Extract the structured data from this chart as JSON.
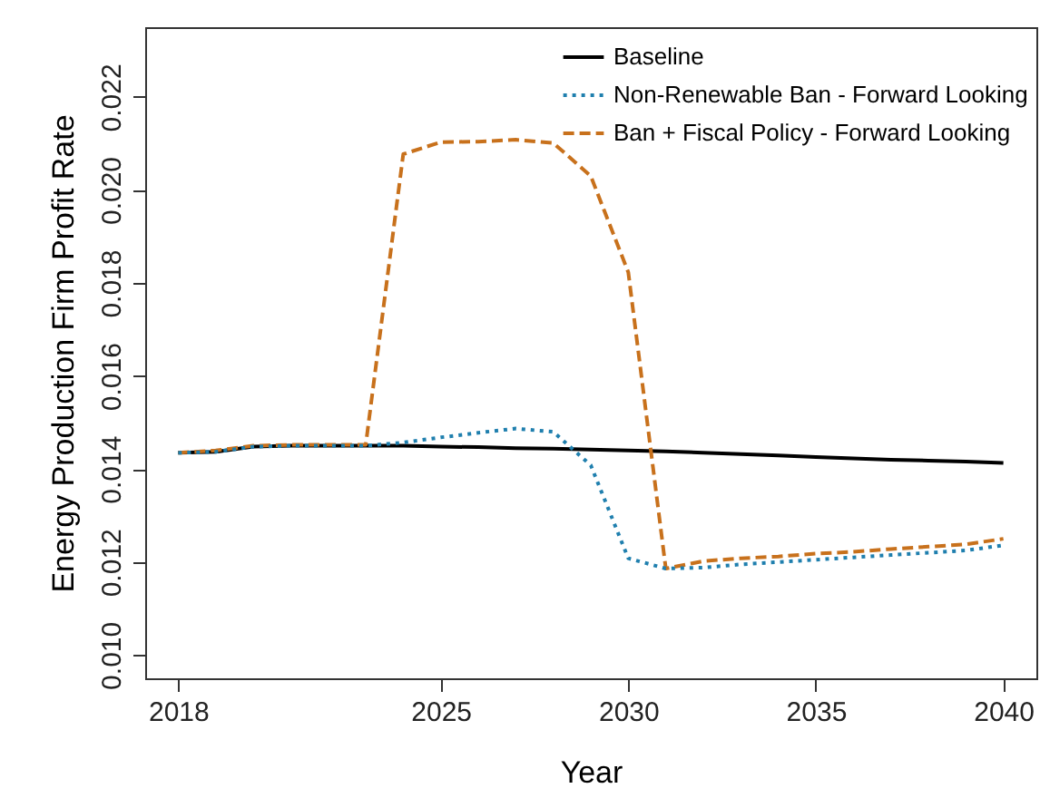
{
  "chart_data": {
    "type": "line",
    "xlabel": "Year",
    "ylabel": "Energy Production Firm Profit Rate",
    "x": [
      2018,
      2019,
      2020,
      2021,
      2022,
      2023,
      2024,
      2025,
      2026,
      2027,
      2028,
      2029,
      2030,
      2031,
      2032,
      2033,
      2034,
      2035,
      2036,
      2037,
      2038,
      2039,
      2040
    ],
    "series": [
      {
        "name": "Baseline",
        "color": "#000000",
        "line_style": "solid",
        "values": [
          0.01435,
          0.01437,
          0.01448,
          0.0145,
          0.0145,
          0.0145,
          0.0145,
          0.01448,
          0.01447,
          0.01445,
          0.01444,
          0.01442,
          0.0144,
          0.01438,
          0.01435,
          0.01432,
          0.01429,
          0.01426,
          0.01423,
          0.0142,
          0.01418,
          0.01416,
          0.01413
        ]
      },
      {
        "name": "Non-Renewable Ban - Forward Looking",
        "color": "#1f7fae",
        "line_style": "dotted",
        "values": [
          0.01435,
          0.01437,
          0.01448,
          0.0145,
          0.0145,
          0.0145,
          0.01457,
          0.01468,
          0.01478,
          0.01487,
          0.0148,
          0.01408,
          0.01208,
          0.01186,
          0.01188,
          0.01195,
          0.012,
          0.01205,
          0.0121,
          0.01215,
          0.0122,
          0.01225,
          0.01236
        ]
      },
      {
        "name": "Ban + Fiscal Policy - Forward Looking",
        "color": "#c8711c",
        "line_style": "dashed",
        "values": [
          0.01435,
          0.0144,
          0.0145,
          0.01452,
          0.01452,
          0.01452,
          0.02077,
          0.02103,
          0.02104,
          0.02108,
          0.02101,
          0.0203,
          0.01823,
          0.01186,
          0.01202,
          0.01208,
          0.01212,
          0.01218,
          0.01222,
          0.01228,
          0.01233,
          0.01238,
          0.0125
        ]
      }
    ],
    "xlim": [
      2017.12,
      2040.88
    ],
    "ylim": [
      0.0095,
      0.0235
    ],
    "xticks": [
      2018,
      2025,
      2030,
      2035,
      2040
    ],
    "yticks": [
      {
        "value": 0.01,
        "label": "0.010"
      },
      {
        "value": 0.012,
        "label": "0.012"
      },
      {
        "value": 0.014,
        "label": "0.014"
      },
      {
        "value": 0.016,
        "label": "0.016"
      },
      {
        "value": 0.018,
        "label": "0.018"
      },
      {
        "value": 0.02,
        "label": "0.020"
      },
      {
        "value": 0.022,
        "label": "0.022"
      }
    ],
    "grid": false,
    "legend": "top right",
    "marker": "none"
  }
}
